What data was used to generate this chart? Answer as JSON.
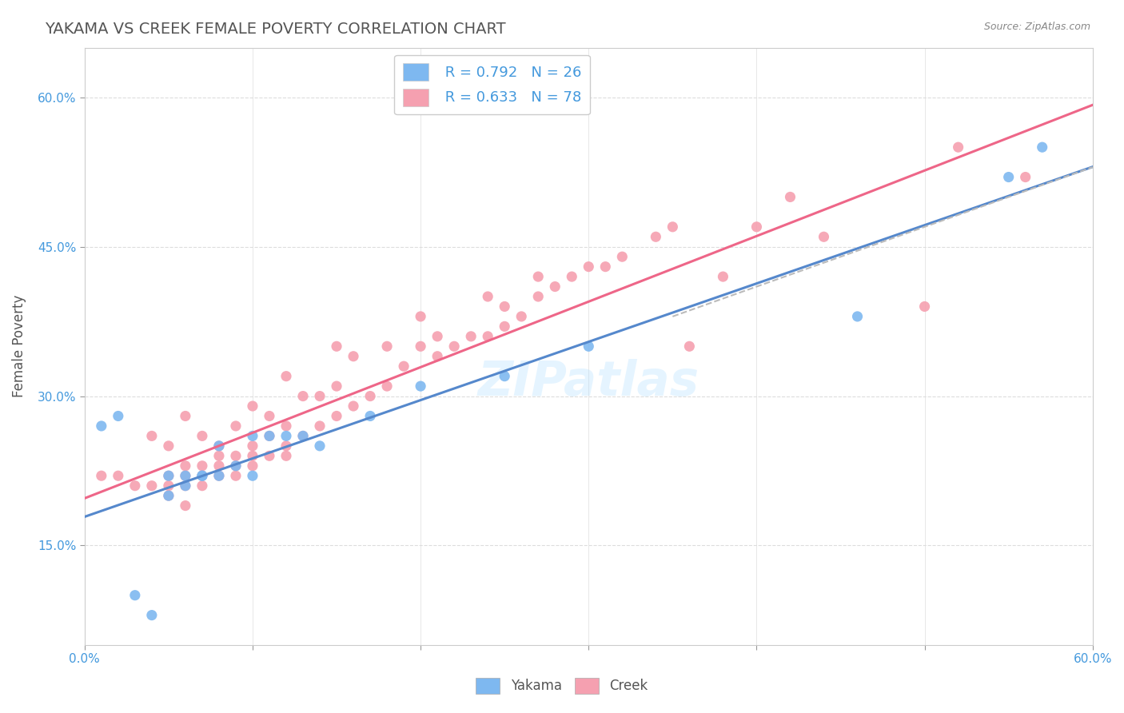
{
  "title": "YAKAMA VS CREEK FEMALE POVERTY CORRELATION CHART",
  "source": "Source: ZipAtlas.com",
  "xlim": [
    0.0,
    0.6
  ],
  "ylim": [
    0.05,
    0.65
  ],
  "ylabel": "Female Poverty",
  "yakama_color": "#7EB8F0",
  "creek_color": "#F5A0B0",
  "yakama_line_color": "#5588CC",
  "creek_line_color": "#EE6688",
  "watermark": "ZIPatlas",
  "legend_r_yakama": "R = 0.792",
  "legend_n_yakama": "N = 26",
  "legend_r_creek": "R = 0.633",
  "legend_n_creek": "N = 78",
  "background_color": "#FFFFFF",
  "grid_color": "#DDDDDD",
  "title_color": "#555555",
  "label_color": "#4499DD",
  "yakama_x": [
    0.01,
    0.02,
    0.03,
    0.04,
    0.05,
    0.05,
    0.06,
    0.06,
    0.07,
    0.07,
    0.08,
    0.08,
    0.09,
    0.1,
    0.1,
    0.11,
    0.12,
    0.13,
    0.14,
    0.17,
    0.2,
    0.25,
    0.3,
    0.46,
    0.55,
    0.57
  ],
  "yakama_y": [
    0.27,
    0.28,
    0.1,
    0.08,
    0.2,
    0.22,
    0.21,
    0.22,
    0.22,
    0.22,
    0.22,
    0.25,
    0.23,
    0.22,
    0.26,
    0.26,
    0.26,
    0.26,
    0.25,
    0.28,
    0.31,
    0.32,
    0.35,
    0.38,
    0.52,
    0.55
  ],
  "creek_x": [
    0.01,
    0.02,
    0.03,
    0.04,
    0.04,
    0.05,
    0.05,
    0.05,
    0.05,
    0.06,
    0.06,
    0.06,
    0.06,
    0.06,
    0.07,
    0.07,
    0.07,
    0.07,
    0.08,
    0.08,
    0.08,
    0.08,
    0.09,
    0.09,
    0.09,
    0.09,
    0.1,
    0.1,
    0.1,
    0.1,
    0.11,
    0.11,
    0.11,
    0.12,
    0.12,
    0.12,
    0.12,
    0.13,
    0.13,
    0.14,
    0.14,
    0.15,
    0.15,
    0.15,
    0.16,
    0.16,
    0.17,
    0.18,
    0.18,
    0.19,
    0.2,
    0.2,
    0.21,
    0.21,
    0.22,
    0.23,
    0.24,
    0.24,
    0.25,
    0.25,
    0.26,
    0.27,
    0.27,
    0.28,
    0.29,
    0.3,
    0.31,
    0.32,
    0.34,
    0.35,
    0.36,
    0.38,
    0.4,
    0.42,
    0.44,
    0.5,
    0.52,
    0.56
  ],
  "creek_y": [
    0.22,
    0.22,
    0.21,
    0.21,
    0.26,
    0.2,
    0.21,
    0.22,
    0.25,
    0.19,
    0.21,
    0.22,
    0.23,
    0.28,
    0.21,
    0.22,
    0.23,
    0.26,
    0.22,
    0.23,
    0.24,
    0.25,
    0.22,
    0.23,
    0.24,
    0.27,
    0.23,
    0.24,
    0.25,
    0.29,
    0.24,
    0.26,
    0.28,
    0.24,
    0.25,
    0.27,
    0.32,
    0.26,
    0.3,
    0.27,
    0.3,
    0.28,
    0.31,
    0.35,
    0.29,
    0.34,
    0.3,
    0.31,
    0.35,
    0.33,
    0.35,
    0.38,
    0.34,
    0.36,
    0.35,
    0.36,
    0.36,
    0.4,
    0.37,
    0.39,
    0.38,
    0.4,
    0.42,
    0.41,
    0.42,
    0.43,
    0.43,
    0.44,
    0.46,
    0.47,
    0.35,
    0.42,
    0.47,
    0.5,
    0.46,
    0.39,
    0.55,
    0.52
  ],
  "dashed_line": [
    [
      0.35,
      0.38
    ],
    [
      0.6,
      0.53
    ]
  ],
  "xticks": [
    0.0,
    0.1,
    0.2,
    0.3,
    0.4,
    0.5,
    0.6
  ],
  "yticks": [
    0.15,
    0.3,
    0.45,
    0.6
  ]
}
